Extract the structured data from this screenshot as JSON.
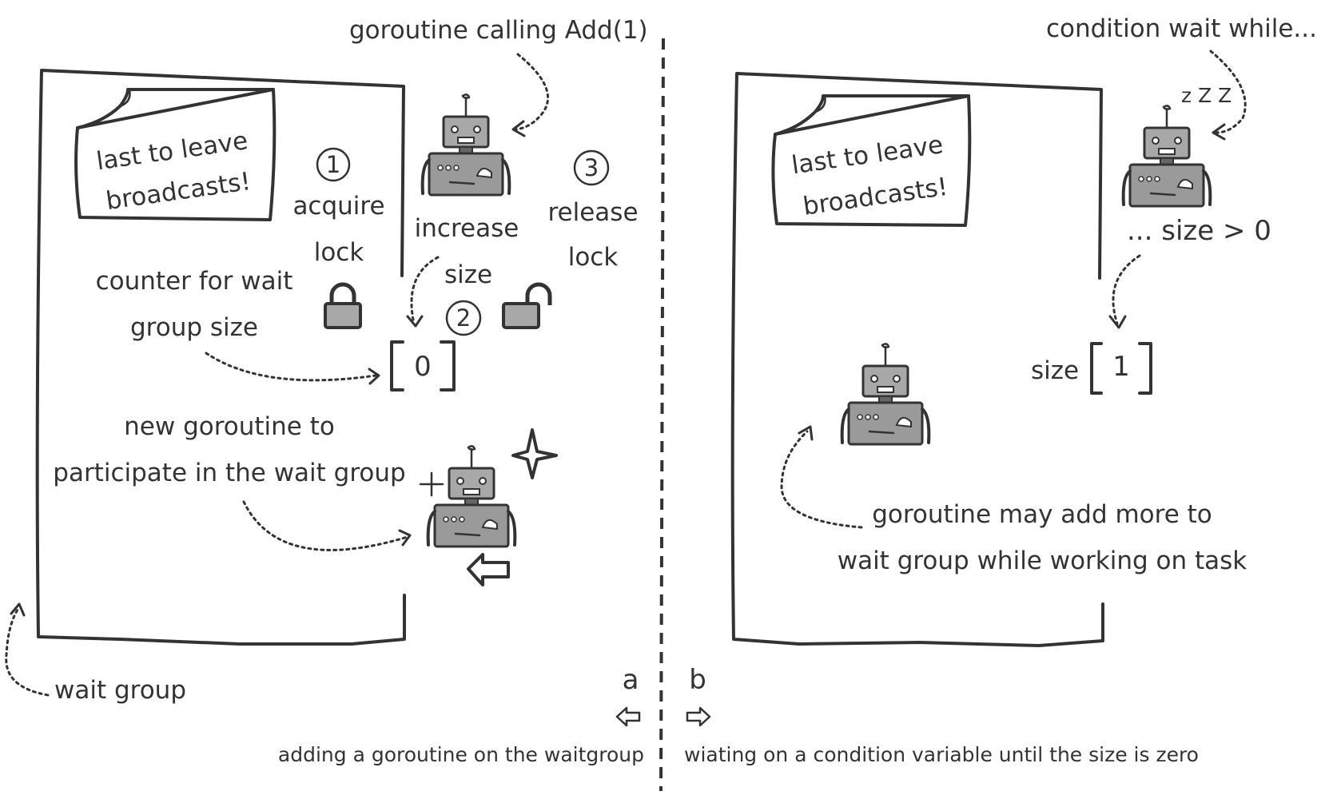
{
  "left": {
    "panel_label": "a",
    "caption": "adding a goroutine on the waitgroup",
    "note_line1": "last to leave",
    "note_line2": "broadcasts!",
    "goroutine_calling": "goroutine calling Add(1)",
    "step1_number": "1",
    "step1_line1": "acquire",
    "step1_line2": "lock",
    "step2_number": "2",
    "step2_line1": "increase",
    "step2_line2": "size",
    "step3_number": "3",
    "step3_line1": "release",
    "step3_line2": "lock",
    "counter_line1": "counter for wait",
    "counter_line2": "group size",
    "counter_value": "0",
    "new_goroutine_line1": "new goroutine to",
    "new_goroutine_line2": "participate in the wait group",
    "wait_group_label": "wait group"
  },
  "right": {
    "panel_label": "b",
    "caption": "wiating on a condition variable until the size is zero",
    "note_line1": "last to leave",
    "note_line2": "broadcasts!",
    "condition_wait": "condition wait while...",
    "condition_expr": "... size > 0",
    "size_label": "size",
    "size_value": "1",
    "zzz": "z Z Z",
    "may_add_line1": "goroutine may add more to",
    "may_add_line2": "wait group while working on task"
  },
  "icons": {
    "left_arrow": "hollow-left-arrow",
    "right_arrow": "hollow-right-arrow",
    "locked": "padlock-closed",
    "unlocked": "padlock-open",
    "robot": "robot"
  },
  "colors": {
    "ink": "#333333",
    "robot_fill": "#9a9a9a",
    "lock_fill": "#a8a8a8"
  }
}
